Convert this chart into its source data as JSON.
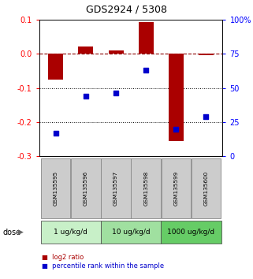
{
  "title": "GDS2924 / 5308",
  "samples": [
    "GSM135595",
    "GSM135596",
    "GSM135597",
    "GSM135598",
    "GSM135599",
    "GSM135600"
  ],
  "log2_ratios": [
    -0.075,
    0.02,
    0.01,
    0.093,
    -0.255,
    -0.005
  ],
  "percentile_ranks": [
    17,
    44,
    46,
    63,
    20,
    29
  ],
  "dose_groups": [
    {
      "label": "1 ug/kg/d",
      "color": "#c8f0c8",
      "start": 0,
      "end": 1
    },
    {
      "label": "10 ug/kg/d",
      "color": "#a0e0a0",
      "start": 2,
      "end": 3
    },
    {
      "label": "1000 ug/kg/d",
      "color": "#66cc66",
      "start": 4,
      "end": 5
    }
  ],
  "bar_color": "#aa0000",
  "dot_color": "#0000cc",
  "ylim_left": [
    -0.3,
    0.1
  ],
  "ylim_right": [
    0,
    100
  ],
  "yticks_left": [
    -0.3,
    -0.2,
    -0.1,
    0.0,
    0.1
  ],
  "yticks_right": [
    0,
    25,
    50,
    75,
    100
  ],
  "legend_red": "log2 ratio",
  "legend_blue": "percentile rank within the sample",
  "background_color": "#ffffff",
  "sample_box_color": "#cccccc",
  "bar_width": 0.5,
  "figsize": [
    3.21,
    3.54
  ],
  "dpi": 100
}
